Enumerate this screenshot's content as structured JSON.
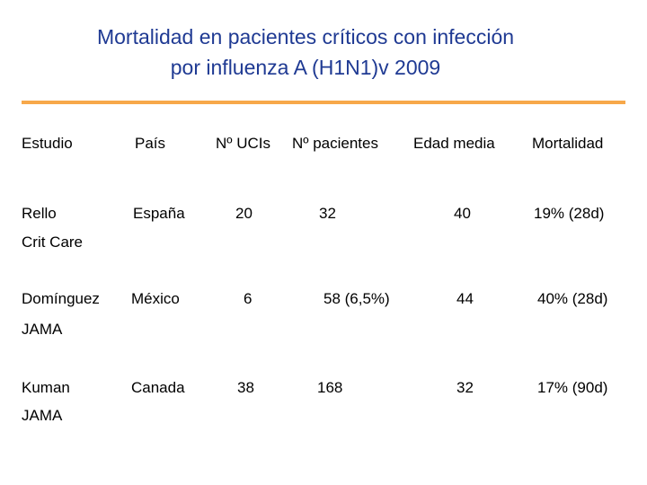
{
  "title": {
    "line1": "Mortalidad en pacientes críticos con infección",
    "line2": "por influenza A (H1N1)v 2009"
  },
  "headers": [
    "Estudio",
    "País",
    "Nº UCIs",
    "Nº pacientes",
    "Edad media",
    "Mortalidad"
  ],
  "rows": [
    {
      "estudio": "Rello",
      "fuente": "Crit Care",
      "pais": "España",
      "ucis": "20",
      "pacientes": "32",
      "edad": "40",
      "mortalidad": "19% (28d)"
    },
    {
      "estudio": "Domínguez",
      "fuente": "JAMA",
      "pais": "México",
      "ucis": "6",
      "pacientes": "58 (6,5%)",
      "edad": "44",
      "mortalidad": "40% (28d)"
    },
    {
      "estudio": "Kuman",
      "fuente": "JAMA",
      "pais": "Canada",
      "ucis": "38",
      "pacientes": "168",
      "edad": "32",
      "mortalidad": "17% (90d)"
    }
  ],
  "colors": {
    "title": "#1f3a93",
    "rule": "#f7a84a"
  }
}
